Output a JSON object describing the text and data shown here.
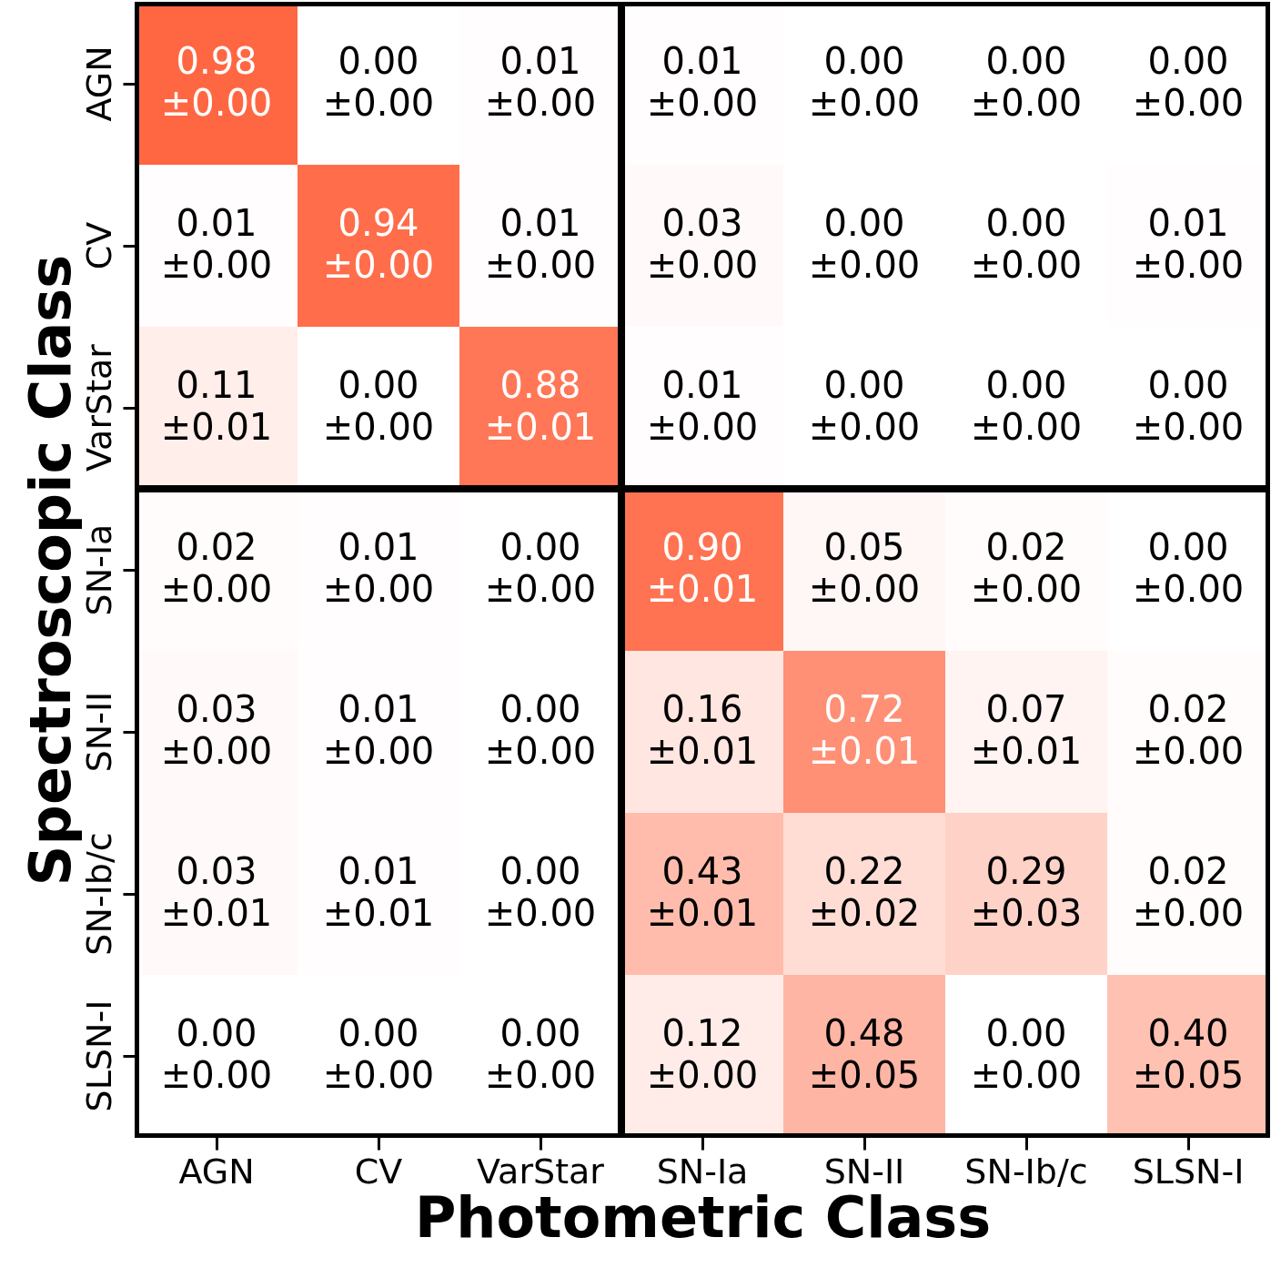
{
  "chart_data": {
    "type": "heatmap",
    "xlabel": "Photometric Class",
    "ylabel": "Spectroscopic Class",
    "categories": [
      "AGN",
      "CV",
      "VarStar",
      "SN-Ia",
      "SN-II",
      "SN-Ib/c",
      "SLSN-I"
    ],
    "y_categories": [
      "AGN",
      "CV",
      "VarStar",
      "SN-Ia",
      "SN-II",
      "SN-Ib/c",
      "SLSN-I"
    ],
    "cells": [
      [
        0.98,
        0.0,
        0.01,
        0.01,
        0.0,
        0.0,
        0.0
      ],
      [
        0.01,
        0.94,
        0.01,
        0.03,
        0.0,
        0.0,
        0.01
      ],
      [
        0.11,
        0.0,
        0.88,
        0.01,
        0.0,
        0.0,
        0.0
      ],
      [
        0.02,
        0.01,
        0.0,
        0.9,
        0.05,
        0.02,
        0.0
      ],
      [
        0.03,
        0.01,
        0.0,
        0.16,
        0.72,
        0.07,
        0.02
      ],
      [
        0.03,
        0.01,
        0.0,
        0.43,
        0.22,
        0.29,
        0.02
      ],
      [
        0.0,
        0.0,
        0.0,
        0.12,
        0.48,
        0.0,
        0.4
      ]
    ],
    "cell_labels": [
      [
        "0.98",
        "0.00",
        "0.01",
        "0.01",
        "0.00",
        "0.00",
        "0.00"
      ],
      [
        "0.01",
        "0.94",
        "0.01",
        "0.03",
        "0.00",
        "0.00",
        "0.01"
      ],
      [
        "0.11",
        "0.00",
        "0.88",
        "0.01",
        "0.00",
        "0.00",
        "0.00"
      ],
      [
        "0.02",
        "0.01",
        "0.00",
        "0.90",
        "0.05",
        "0.02",
        "0.00"
      ],
      [
        "0.03",
        "0.01",
        "0.00",
        "0.16",
        "0.72",
        "0.07",
        "0.02"
      ],
      [
        "0.03",
        "0.01",
        "0.00",
        "0.43",
        "0.22",
        "0.29",
        "0.02"
      ],
      [
        "0.00",
        "0.00",
        "0.00",
        "0.12",
        "0.48",
        "0.00",
        "0.40"
      ]
    ],
    "annotations": [
      "±0.00",
      "±0.00",
      "±0.00",
      "±0.00",
      "±0.00",
      "±0.00",
      "±0.00",
      "±0.00",
      "±0.00",
      "±0.00",
      "±0.00",
      "±0.00",
      "±0.00",
      "±0.00",
      "±0.01",
      "±0.00",
      "±0.01",
      "±0.00",
      "±0.00",
      "±0.00",
      "±0.00",
      "±0.00",
      "±0.00",
      "±0.00",
      "±0.01",
      "±0.00",
      "±0.00",
      "±0.00",
      "±0.00",
      "±0.00",
      "±0.00",
      "±0.01",
      "±0.01",
      "±0.01",
      "±0.00",
      "±0.01",
      "±0.01",
      "±0.00",
      "±0.01",
      "±0.02",
      "±0.03",
      "±0.00",
      "±0.00",
      "±0.00",
      "±0.00",
      "±0.00",
      "±0.05",
      "±0.00",
      "±0.05"
    ],
    "colors": [
      "#ffffff",
      "#ff6743"
    ]
  }
}
